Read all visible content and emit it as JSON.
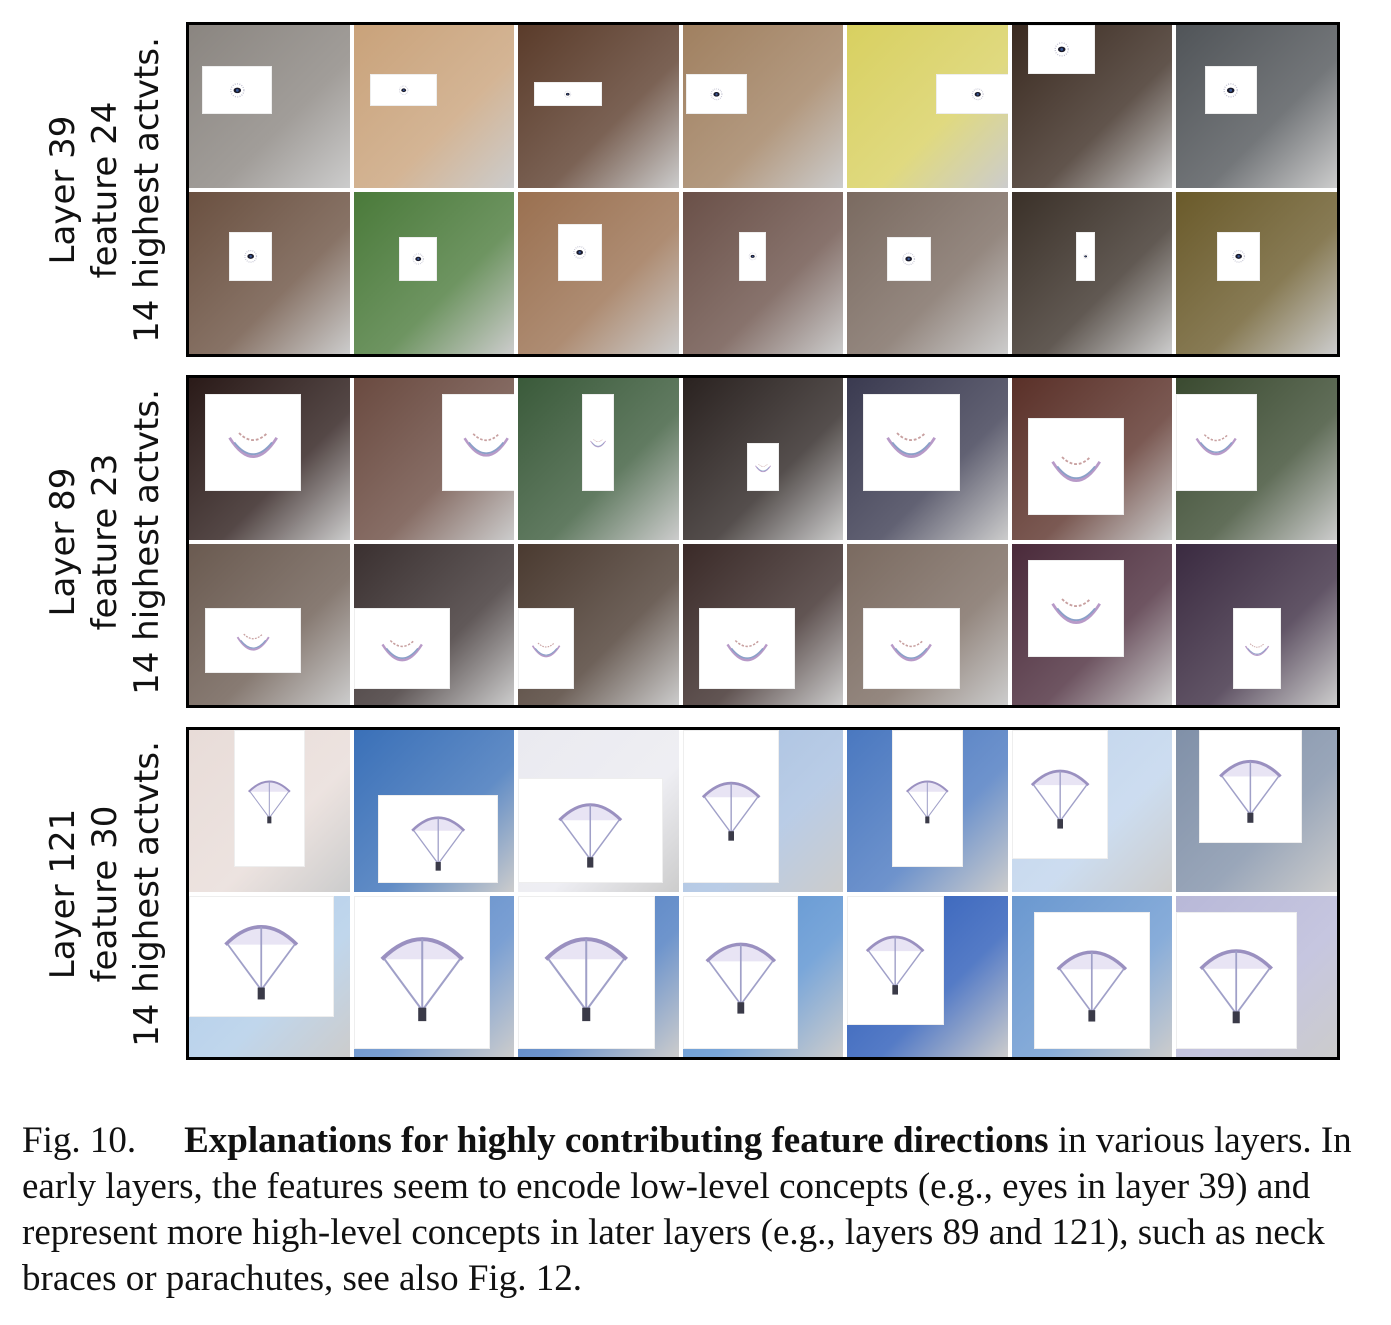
{
  "panels": [
    {
      "label_line1": "Layer 39",
      "label_line2": "feature 24",
      "label_line3": "14 highest actvts."
    },
    {
      "label_line1": "Layer 89",
      "label_line2": "feature 23",
      "label_line3": "14 highest actvts."
    },
    {
      "label_line1": "Layer 121",
      "label_line2": "feature 30",
      "label_line3": "14 highest actvts."
    }
  ],
  "caption": {
    "fig_label": "Fig. 10.",
    "bold": "Explanations for highly contributing feature directions",
    "text": " in various layers. In early layers, the features seem to encode low-level concepts (e.g., eyes in layer 39) and represent more high-level concepts in later layers (e.g., layers 89 and 121), such as neck braces or parachutes, see also Fig. 12."
  }
}
